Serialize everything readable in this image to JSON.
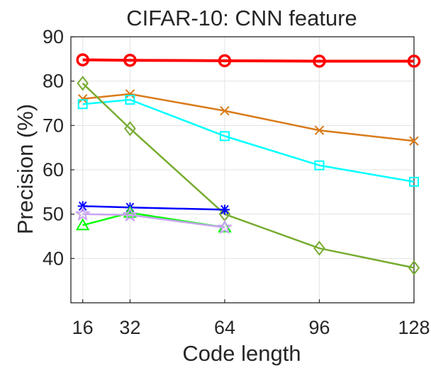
{
  "chart_data": {
    "type": "line",
    "title": "CIFAR-10: CNN feature",
    "xlabel": "Code length",
    "ylabel": "Precision (%)",
    "xlim": [
      12,
      128
    ],
    "ylim": [
      30,
      90
    ],
    "xticks": [
      16,
      32,
      64,
      96,
      128
    ],
    "yticks": [
      40,
      50,
      60,
      70,
      80,
      90
    ],
    "grid": true,
    "series": [
      {
        "color": "#ff0000",
        "marker": "circle",
        "x": [
          16,
          32,
          64,
          96,
          128
        ],
        "values": [
          84.8,
          84.7,
          84.6,
          84.5,
          84.5
        ]
      },
      {
        "color": "#d97b1a",
        "marker": "x",
        "x": [
          16,
          32,
          64,
          96,
          128
        ],
        "values": [
          76.0,
          77.1,
          73.3,
          68.9,
          66.5
        ]
      },
      {
        "color": "#00ffff",
        "marker": "square",
        "x": [
          16,
          32,
          64,
          96,
          128
        ],
        "values": [
          74.8,
          75.8,
          67.6,
          61.0,
          57.3
        ]
      },
      {
        "color": "#77ac30",
        "marker": "diamond",
        "x": [
          16,
          32,
          64,
          96,
          128
        ],
        "values": [
          79.5,
          69.3,
          50.0,
          42.3,
          37.9
        ]
      },
      {
        "color": "#0000ff",
        "marker": "asterisk",
        "x": [
          16,
          32,
          64
        ],
        "values": [
          51.8,
          51.5,
          51.0
        ]
      },
      {
        "color": "#00ff00",
        "marker": "triangle",
        "x": [
          16,
          32,
          64
        ],
        "values": [
          47.5,
          50.3,
          47.0
        ]
      },
      {
        "color": "#c8a2f0",
        "marker": "star",
        "x": [
          16,
          32,
          64
        ],
        "values": [
          50.0,
          49.8,
          47.0
        ]
      }
    ]
  }
}
